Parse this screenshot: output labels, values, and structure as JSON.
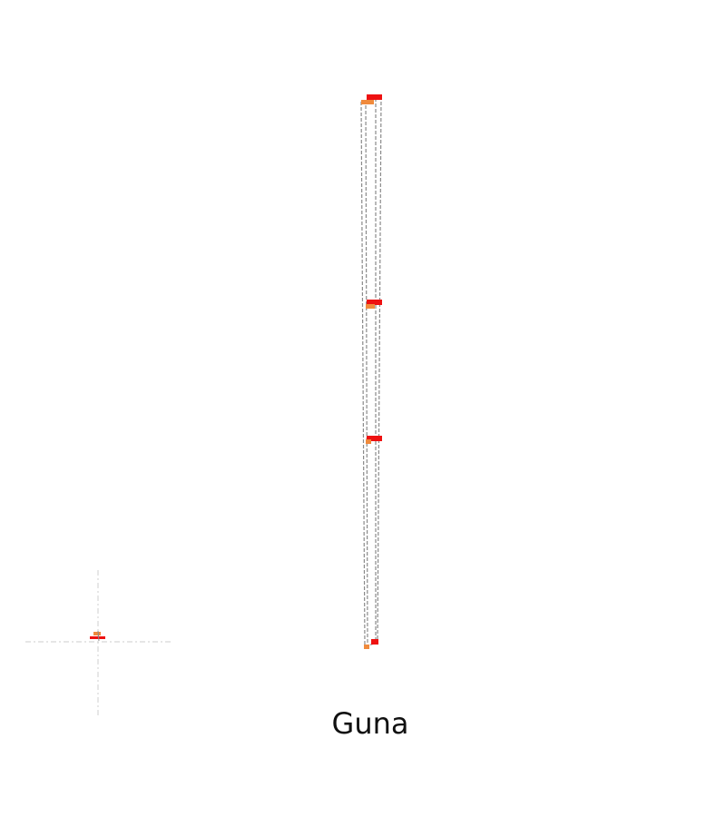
{
  "title": "Guna",
  "colors": {
    "dashed_line": "#8a8a8a",
    "crosshair": "#d7d7d7",
    "red_marker": "#ee1111",
    "orange_marker": "#f08a3c"
  },
  "markers": {
    "levels": 4,
    "red_count": 4,
    "orange_count": 4
  }
}
